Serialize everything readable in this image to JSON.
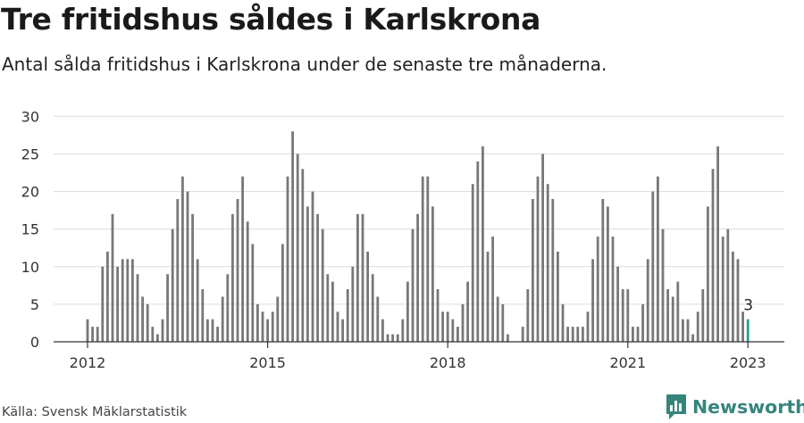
{
  "title": "Tre fritidshus såldes i Karlskrona",
  "subtitle": "Antal sålda fritidshus i Karlskrona under de senaste tre månaderna.",
  "source": "Källa: Svensk Mäklarstatistik",
  "brand": "Newsworthy",
  "colors": {
    "bar": "#787878",
    "highlight": "#2a9d92",
    "brand": "#35857d",
    "grid": "#dcdcdc",
    "axis": "#333333"
  },
  "chart_data": {
    "type": "bar",
    "x_start": "2012-01",
    "interval": "month",
    "x_tick_labels": [
      "2012",
      "2015",
      "2018",
      "2021",
      "2023"
    ],
    "y_ticks": [
      0,
      5,
      10,
      15,
      20,
      25,
      30
    ],
    "ylim": [
      0,
      30
    ],
    "values": [
      3,
      2,
      2,
      10,
      12,
      17,
      10,
      11,
      11,
      11,
      9,
      6,
      5,
      2,
      1,
      3,
      9,
      15,
      19,
      22,
      20,
      17,
      11,
      7,
      3,
      3,
      2,
      6,
      9,
      17,
      19,
      22,
      16,
      13,
      5,
      4,
      3,
      4,
      6,
      13,
      22,
      28,
      25,
      23,
      18,
      20,
      17,
      15,
      9,
      8,
      4,
      3,
      7,
      10,
      17,
      17,
      12,
      9,
      6,
      3,
      1,
      1,
      1,
      3,
      8,
      15,
      17,
      22,
      22,
      18,
      7,
      4,
      4,
      3,
      2,
      5,
      8,
      21,
      24,
      26,
      12,
      14,
      6,
      5,
      1,
      0,
      0,
      2,
      7,
      19,
      22,
      25,
      21,
      19,
      12,
      5,
      2,
      2,
      2,
      2,
      4,
      11,
      14,
      19,
      18,
      14,
      10,
      7,
      7,
      2,
      2,
      5,
      11,
      20,
      22,
      15,
      7,
      6,
      8,
      3,
      3,
      1,
      4,
      7,
      18,
      23,
      26,
      14,
      15,
      12,
      11,
      4,
      3
    ],
    "highlight_last": true,
    "last_value_label": "3",
    "grid": true,
    "legend": "none"
  }
}
